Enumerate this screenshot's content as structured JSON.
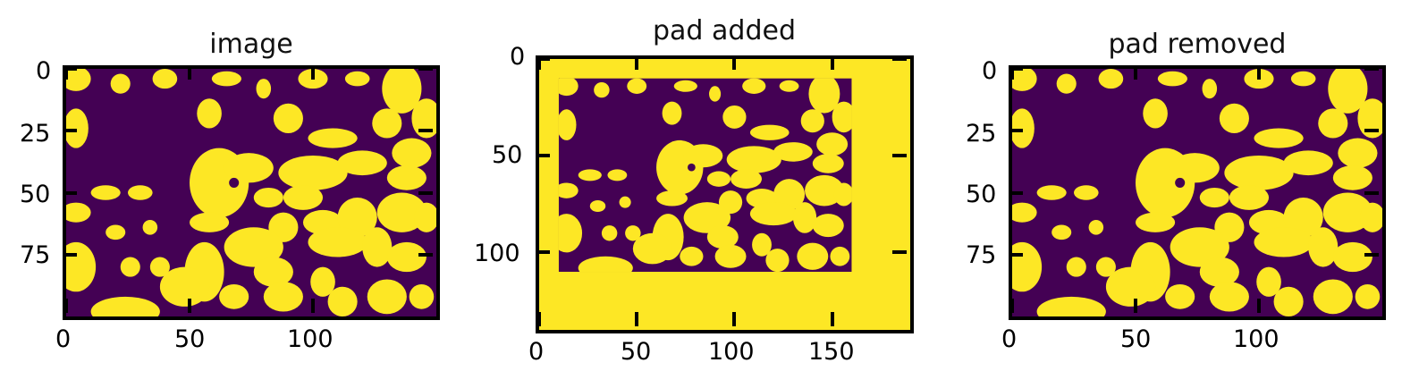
{
  "colors": {
    "background_class": "#440154",
    "foreground_class": "#fde725"
  },
  "chart_data": [
    {
      "type": "heatmap",
      "title": "image",
      "xlim": [
        0,
        150
      ],
      "ylim": [
        100,
        0
      ],
      "x_ticks": [
        "0",
        "50",
        "100"
      ],
      "y_ticks": [
        "0",
        "25",
        "50",
        "75"
      ],
      "shape": [
        100,
        150
      ]
    },
    {
      "type": "heatmap",
      "title": "pad added",
      "xlim": [
        0,
        190
      ],
      "ylim": [
        140,
        0
      ],
      "x_ticks": [
        "0",
        "50",
        "100",
        "150"
      ],
      "y_ticks": [
        "0",
        "50",
        "100"
      ],
      "shape": [
        140,
        190
      ],
      "inner_region": {
        "x": [
          10,
          160
        ],
        "y": [
          10,
          110
        ]
      }
    },
    {
      "type": "heatmap",
      "title": "pad removed",
      "xlim": [
        0,
        150
      ],
      "ylim": [
        100,
        0
      ],
      "x_ticks": [
        "0",
        "50",
        "100"
      ],
      "y_ticks": [
        "0",
        "25",
        "50",
        "75"
      ],
      "shape": [
        100,
        150
      ]
    }
  ]
}
